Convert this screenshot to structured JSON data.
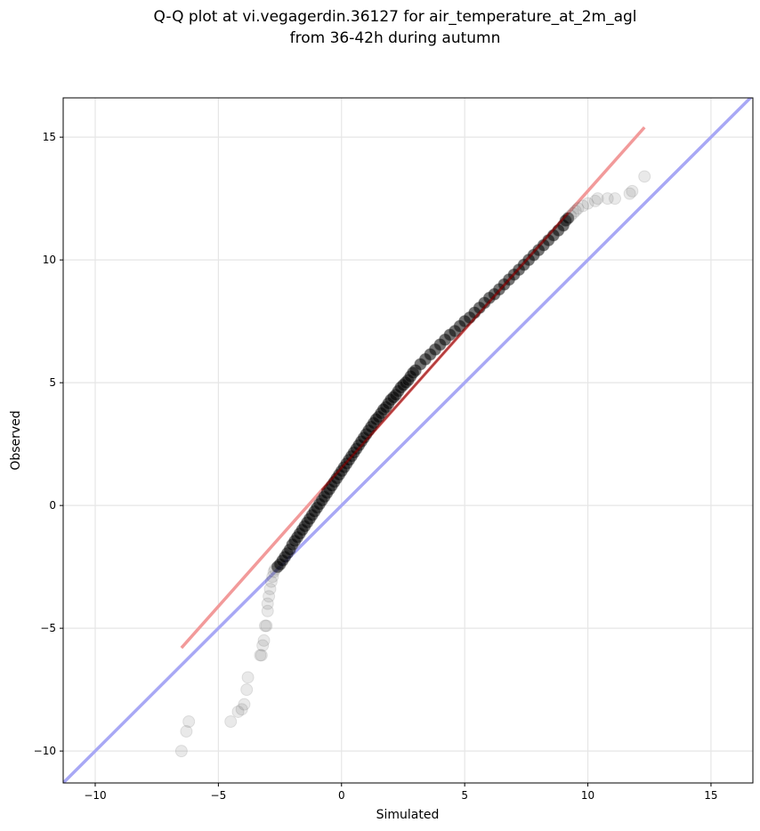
{
  "chart_data": {
    "type": "scatter",
    "title": "Q-Q plot at vi.vegagerdin.36127 for air_temperature_at_2m_agl",
    "subtitle": "from 36-42h during autumn",
    "xlabel": "Simulated",
    "ylabel": "Observed",
    "xlim": [
      -11.3,
      16.7
    ],
    "ylim": [
      -11.3,
      16.6
    ],
    "xticks": [
      -10,
      -5,
      0,
      5,
      10,
      15
    ],
    "yticks": [
      -10,
      -5,
      0,
      5,
      10,
      15
    ],
    "xtick_labels": [
      "−10",
      "−5",
      "0",
      "5",
      "10",
      "15"
    ],
    "ytick_labels": [
      "−10",
      "−5",
      "0",
      "5",
      "10",
      "15"
    ],
    "grid": true,
    "colors": {
      "points": "#555555",
      "dense_points": "#000000",
      "fit_line": "#f29a9a",
      "fit_line_dense": "#8b0000",
      "identity_line": "#a8a8f5"
    },
    "identity_line": {
      "x": [
        -11.3,
        16.7
      ],
      "y": [
        -11.3,
        16.7
      ]
    },
    "fit_line": {
      "x": [
        -6.5,
        12.3
      ],
      "y": [
        -5.8,
        15.4
      ]
    },
    "points": {
      "x": [
        -6.5,
        -6.3,
        -6.2,
        -4.5,
        -4.2,
        -4.05,
        -3.95,
        -3.85,
        -3.8,
        -3.3,
        -3.25,
        -3.2,
        -3.15,
        -3.1,
        -3.05,
        -3.0,
        -3.0,
        -2.95,
        -2.9,
        -2.85,
        -2.8,
        -2.75,
        -2.7,
        -2.6,
        -2.5,
        -2.4,
        -2.3,
        -2.2,
        -2.1,
        -2.0,
        -1.9,
        -1.8,
        -1.7,
        -1.6,
        -1.5,
        -1.4,
        -1.3,
        -1.2,
        -1.1,
        -1.0,
        -0.9,
        -0.8,
        -0.7,
        -0.6,
        -0.5,
        -0.4,
        -0.3,
        -0.2,
        -0.1,
        0.0,
        0.1,
        0.2,
        0.3,
        0.4,
        0.5,
        0.6,
        0.7,
        0.8,
        0.9,
        1.0,
        1.1,
        1.2,
        1.3,
        1.4,
        1.5,
        1.6,
        1.7,
        1.8,
        1.9,
        2.0,
        2.1,
        2.2,
        2.3,
        2.4,
        2.5,
        2.6,
        2.7,
        2.8,
        2.9,
        3.0,
        3.2,
        3.4,
        3.6,
        3.8,
        4.0,
        4.2,
        4.4,
        4.6,
        4.8,
        5.0,
        5.2,
        5.4,
        5.6,
        5.8,
        6.0,
        6.2,
        6.4,
        6.6,
        6.8,
        7.0,
        7.2,
        7.4,
        7.6,
        7.8,
        8.0,
        8.2,
        8.4,
        8.6,
        8.8,
        9.0,
        9.1,
        9.2,
        9.3,
        9.4,
        9.5,
        9.6,
        9.8,
        10.0,
        10.3,
        10.4,
        10.8,
        11.1,
        11.7,
        11.8,
        12.3
      ],
      "y": [
        -10.0,
        -9.2,
        -8.8,
        -8.8,
        -8.4,
        -8.3,
        -8.1,
        -7.5,
        -7.0,
        -6.1,
        -6.1,
        -5.7,
        -5.5,
        -4.9,
        -4.9,
        -4.3,
        -4.0,
        -3.7,
        -3.4,
        -3.1,
        -2.9,
        -2.7,
        -2.6,
        -2.5,
        -2.4,
        -2.25,
        -2.1,
        -1.95,
        -1.8,
        -1.6,
        -1.45,
        -1.3,
        -1.15,
        -1.0,
        -0.85,
        -0.7,
        -0.55,
        -0.4,
        -0.25,
        -0.1,
        0.05,
        0.2,
        0.35,
        0.5,
        0.65,
        0.8,
        0.95,
        1.1,
        1.25,
        1.4,
        1.55,
        1.7,
        1.85,
        2.0,
        2.15,
        2.3,
        2.45,
        2.6,
        2.75,
        2.9,
        3.05,
        3.2,
        3.35,
        3.5,
        3.6,
        3.75,
        3.9,
        4.0,
        4.15,
        4.3,
        4.4,
        4.5,
        4.65,
        4.8,
        4.9,
        5.0,
        5.1,
        5.25,
        5.4,
        5.5,
        5.75,
        5.95,
        6.15,
        6.35,
        6.55,
        6.75,
        6.95,
        7.1,
        7.3,
        7.5,
        7.65,
        7.85,
        8.05,
        8.25,
        8.45,
        8.6,
        8.8,
        9.0,
        9.2,
        9.4,
        9.6,
        9.8,
        10.0,
        10.2,
        10.4,
        10.6,
        10.8,
        11.0,
        11.2,
        11.4,
        11.6,
        11.7,
        11.8,
        11.9,
        12.0,
        12.1,
        12.2,
        12.3,
        12.4,
        12.5,
        12.5,
        12.5,
        12.7,
        12.8,
        13.4
      ]
    }
  }
}
